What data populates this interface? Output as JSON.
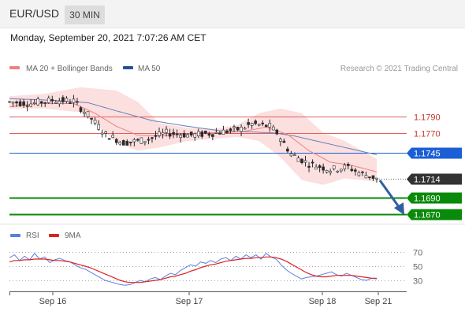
{
  "header": {
    "symbol": "EUR/USD",
    "timeframe": "30 MIN",
    "datetime": "Monday, September 20, 2021 7:07:26 AM CET"
  },
  "legend": {
    "bb_label": "MA 20 + Bollinger Bands",
    "ma50_label": "MA 50",
    "credit": "Research © 2021 Trading Central",
    "rsi_label": "RSI",
    "rsi_ma_label": "9MA"
  },
  "colors": {
    "candle": "#2a2a2a",
    "bollinger_fill": "#fbd4d4",
    "ma20": "#f08080",
    "ma50": "#6b7fb8",
    "resistance": "#e06060",
    "pivot": "#1a5fd6",
    "support": "#0a8a0a",
    "current": "#333333",
    "arrow": "#2f5fa0",
    "rsi": "#5b7fe0",
    "rsi_ma": "#dd2222"
  },
  "chart_data": [
    {
      "type": "candlestick",
      "x_labels": [
        "Sep 16",
        "Sep 17",
        "Sep 18",
        "Sep 21"
      ],
      "levels": [
        {
          "value": 1.179,
          "label": "1.1790",
          "kind": "resistance"
        },
        {
          "value": 1.177,
          "label": "1.1770",
          "kind": "resistance"
        },
        {
          "value": 1.1745,
          "label": "1.1745",
          "kind": "pivot"
        },
        {
          "value": 1.1714,
          "label": "1.1714",
          "kind": "current"
        },
        {
          "value": 1.169,
          "label": "1.1690",
          "kind": "support"
        },
        {
          "value": 1.167,
          "label": "1.1670",
          "kind": "support"
        }
      ],
      "series": [
        {
          "name": "MA 20 + Bollinger Bands"
        },
        {
          "name": "MA 50"
        }
      ],
      "close_path": [
        [
          0,
          1.1808
        ],
        [
          6,
          1.1806
        ],
        [
          12,
          1.181
        ],
        [
          18,
          1.1809
        ],
        [
          22,
          1.1792
        ],
        [
          27,
          1.1768
        ],
        [
          32,
          1.1758
        ],
        [
          38,
          1.1761
        ],
        [
          44,
          1.177
        ],
        [
          51,
          1.1767
        ],
        [
          58,
          1.177
        ],
        [
          65,
          1.1775
        ],
        [
          68,
          1.1781
        ],
        [
          73,
          1.1778
        ],
        [
          75,
          1.177
        ],
        [
          79,
          1.1744
        ],
        [
          84,
          1.1732
        ],
        [
          90,
          1.1725
        ],
        [
          95,
          1.1728
        ],
        [
          98,
          1.1721
        ],
        [
          103,
          1.1714
        ]
      ],
      "ma20_path": [
        [
          0,
          1.1802
        ],
        [
          8,
          1.1806
        ],
        [
          18,
          1.1806
        ],
        [
          24,
          1.1794
        ],
        [
          30,
          1.1778
        ],
        [
          36,
          1.1767
        ],
        [
          42,
          1.1766
        ],
        [
          48,
          1.1768
        ],
        [
          54,
          1.177
        ],
        [
          60,
          1.177
        ],
        [
          66,
          1.1772
        ],
        [
          72,
          1.1777
        ],
        [
          78,
          1.1768
        ],
        [
          84,
          1.1748
        ],
        [
          90,
          1.1734
        ],
        [
          96,
          1.173
        ],
        [
          103,
          1.1722
        ]
      ],
      "ma50_path": [
        [
          0,
          1.1812
        ],
        [
          12,
          1.181
        ],
        [
          22,
          1.1807
        ],
        [
          30,
          1.1797
        ],
        [
          40,
          1.1785
        ],
        [
          50,
          1.1778
        ],
        [
          60,
          1.1772
        ],
        [
          68,
          1.1771
        ],
        [
          74,
          1.177
        ],
        [
          80,
          1.1766
        ],
        [
          88,
          1.1758
        ],
        [
          96,
          1.175
        ],
        [
          103,
          1.1743
        ]
      ],
      "bb_upper": [
        [
          0,
          1.1815
        ],
        [
          10,
          1.1818
        ],
        [
          20,
          1.1826
        ],
        [
          30,
          1.1822
        ],
        [
          36,
          1.1808
        ],
        [
          42,
          1.1782
        ],
        [
          50,
          1.1776
        ],
        [
          58,
          1.1775
        ],
        [
          64,
          1.178
        ],
        [
          70,
          1.1794
        ],
        [
          76,
          1.18
        ],
        [
          82,
          1.1794
        ],
        [
          88,
          1.177
        ],
        [
          94,
          1.176
        ],
        [
          103,
          1.1738
        ]
      ],
      "bb_lower": [
        [
          0,
          1.18
        ],
        [
          10,
          1.18
        ],
        [
          20,
          1.1795
        ],
        [
          24,
          1.1782
        ],
        [
          30,
          1.1758
        ],
        [
          36,
          1.1748
        ],
        [
          42,
          1.1752
        ],
        [
          50,
          1.176
        ],
        [
          58,
          1.1763
        ],
        [
          64,
          1.1765
        ],
        [
          70,
          1.176
        ],
        [
          76,
          1.174
        ],
        [
          82,
          1.1712
        ],
        [
          88,
          1.1706
        ],
        [
          94,
          1.1714
        ],
        [
          103,
          1.171
        ]
      ]
    },
    {
      "type": "line",
      "y_ticks": [
        30,
        50,
        70
      ],
      "ylim": [
        10,
        80
      ],
      "series": [
        {
          "name": "RSI",
          "values": [
            62,
            66,
            58,
            64,
            59,
            68,
            60,
            63,
            55,
            59,
            61,
            58,
            56,
            52,
            48,
            46,
            42,
            38,
            34,
            30,
            28,
            26,
            24,
            23,
            24,
            27,
            30,
            28,
            32,
            34,
            31,
            36,
            40,
            38,
            44,
            48,
            52,
            50,
            56,
            54,
            58,
            55,
            60,
            62,
            58,
            64,
            60,
            66,
            62,
            66,
            60,
            68,
            63,
            60,
            52,
            45,
            40,
            36,
            32,
            34,
            35,
            36,
            38,
            40,
            42,
            38,
            36,
            40,
            37,
            34,
            31,
            30,
            33,
            32
          ]
        },
        {
          "name": "9MA",
          "values": [
            56,
            58,
            58,
            59,
            59,
            60,
            60,
            60,
            59,
            58,
            58,
            57,
            56,
            54,
            52,
            50,
            48,
            45,
            42,
            39,
            36,
            33,
            30,
            28,
            27,
            27,
            27,
            28,
            29,
            30,
            31,
            33,
            35,
            36,
            38,
            40,
            43,
            45,
            48,
            50,
            52,
            53,
            55,
            57,
            58,
            59,
            60,
            61,
            61,
            62,
            62,
            63,
            63,
            62,
            60,
            57,
            53,
            49,
            45,
            41,
            38,
            36,
            35,
            35,
            36,
            37,
            37,
            37,
            37,
            36,
            35,
            34,
            33,
            33
          ]
        }
      ]
    }
  ]
}
